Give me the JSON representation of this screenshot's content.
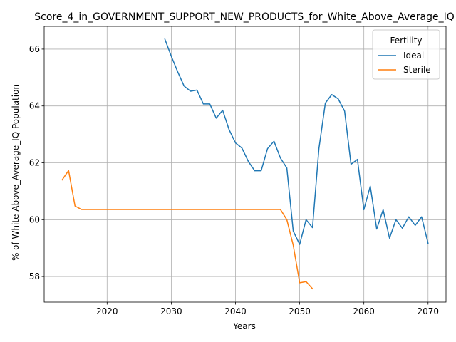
{
  "chart_data": {
    "type": "line",
    "title": "Score_4_in_GOVERNMENT_SUPPORT_NEW_PRODUCTS_for_White_Above_Average_IQ",
    "xlabel": "Years",
    "ylabel": "% of White Above_Average_IQ Population",
    "xlim": [
      2010.2,
      2072.8
    ],
    "ylim": [
      57.1,
      66.8
    ],
    "xticks": [
      2020,
      2030,
      2040,
      2050,
      2060,
      2070
    ],
    "yticks": [
      58,
      60,
      62,
      64,
      66
    ],
    "grid": true,
    "legend": {
      "title": "Fertility",
      "placement": "top-right"
    },
    "series": [
      {
        "name": "Ideal",
        "color": "#1f77b4",
        "x": [
          2029,
          2030,
          2031,
          2032,
          2033,
          2034,
          2035,
          2036,
          2037,
          2038,
          2039,
          2040,
          2041,
          2042,
          2043,
          2044,
          2045,
          2046,
          2047,
          2048,
          2049,
          2050,
          2051,
          2052,
          2053,
          2054,
          2055,
          2056,
          2057,
          2058,
          2059,
          2060,
          2061,
          2062,
          2063,
          2064,
          2065,
          2066,
          2067,
          2068,
          2069,
          2070
        ],
        "values": [
          66.35,
          65.75,
          65.2,
          64.7,
          64.52,
          64.56,
          64.07,
          64.07,
          63.57,
          63.85,
          63.17,
          62.7,
          62.52,
          62.05,
          61.72,
          61.72,
          62.5,
          62.76,
          62.17,
          61.82,
          59.6,
          59.13,
          60.0,
          59.72,
          62.5,
          64.1,
          64.4,
          64.25,
          63.82,
          61.95,
          62.12,
          60.35,
          61.18,
          59.67,
          60.35,
          59.35,
          60.0,
          59.7,
          60.1,
          59.8,
          60.1,
          59.17
        ]
      },
      {
        "name": "Sterile",
        "color": "#ff7f0e",
        "x": [
          2013,
          2014,
          2015,
          2016,
          2017,
          2018,
          2019,
          2020,
          2021,
          2022,
          2023,
          2024,
          2025,
          2026,
          2027,
          2028,
          2029,
          2030,
          2031,
          2032,
          2033,
          2034,
          2035,
          2036,
          2037,
          2038,
          2039,
          2040,
          2041,
          2042,
          2043,
          2044,
          2045,
          2046,
          2047,
          2048,
          2049,
          2050,
          2051,
          2052
        ],
        "values": [
          61.4,
          61.73,
          60.48,
          60.36,
          60.36,
          60.36,
          60.36,
          60.36,
          60.36,
          60.36,
          60.36,
          60.36,
          60.36,
          60.36,
          60.36,
          60.36,
          60.36,
          60.36,
          60.36,
          60.36,
          60.36,
          60.36,
          60.36,
          60.36,
          60.36,
          60.36,
          60.36,
          60.36,
          60.36,
          60.36,
          60.36,
          60.36,
          60.36,
          60.36,
          60.36,
          60.0,
          59.1,
          57.78,
          57.82,
          57.57
        ]
      }
    ]
  }
}
